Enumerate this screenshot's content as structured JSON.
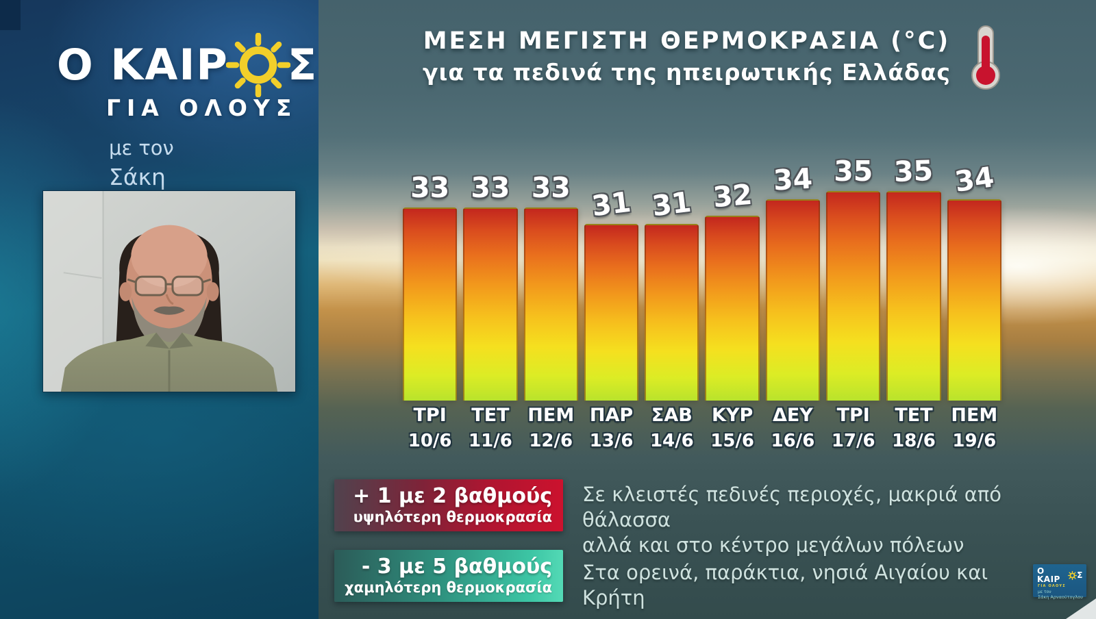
{
  "left_panel": {
    "logo": {
      "title_prefix": "Ο ΚΑΙΡ",
      "title_suffix": "Σ",
      "subtitle": "ΓΙΑ ΟΛΟΥΣ",
      "byline_prefix": "με τον",
      "byline_name": "Σάκη Αρναούτογλου",
      "sun_color": "#f2cf2a"
    }
  },
  "chart_data": {
    "type": "bar",
    "title": "ΜΕΣΗ ΜΕΓΙΣΤΗ ΘΕΡΜΟΚΡΑΣΙΑ (°C)",
    "subtitle": "για τα πεδινά της ηπειρωτικής Ελλάδας",
    "unit": "°C",
    "categories": [
      "ΤΡΙ",
      "ΤΕΤ",
      "ΠΕΜ",
      "ΠΑΡ",
      "ΣΑΒ",
      "ΚΥΡ",
      "ΔΕΥ",
      "ΤΡΙ",
      "ΤΕΤ",
      "ΠΕΜ"
    ],
    "dates": [
      "10/6",
      "11/6",
      "12/6",
      "13/6",
      "14/6",
      "15/6",
      "16/6",
      "17/6",
      "18/6",
      "19/6"
    ],
    "values": [
      33,
      33,
      33,
      31,
      31,
      32,
      34,
      35,
      35,
      34
    ],
    "value_range_shown": [
      31,
      35
    ],
    "grid": false,
    "legend_position": "bottom",
    "bar_gradient": [
      "#c3271e",
      "#e96f1d",
      "#f6c01d",
      "#f5e01f",
      "#b9e32c"
    ],
    "icons": {
      "header": "thermometer-icon"
    }
  },
  "legend": {
    "plus": {
      "line1": "+  1 με 2 βαθμούς",
      "line2": "υψηλότερη θερμοκρασία",
      "badge_color": "#cc122e",
      "desc_line1": "Σε κλειστές πεδινές περιοχές, μακριά από θάλασσα",
      "desc_line2": "αλλά και στο κέντρο μεγάλων πόλεων"
    },
    "minus": {
      "line1": "-  3 με 5 βαθμούς",
      "line2": "χαμηλότερη θερμοκρασία",
      "badge_color": "#3cc5a4",
      "desc": "Στα ορεινά, παράκτια, νησιά Αιγαίου και Κρήτη"
    }
  },
  "corner_badge": {
    "title_prefix": "Ο ΚΑΙΡ",
    "title_suffix": "Σ",
    "subtitle": "ΓΙΑ ΟΛΟΥΣ",
    "byline1": "με τον",
    "byline2": "Σάκη Αρναούτογλου"
  }
}
